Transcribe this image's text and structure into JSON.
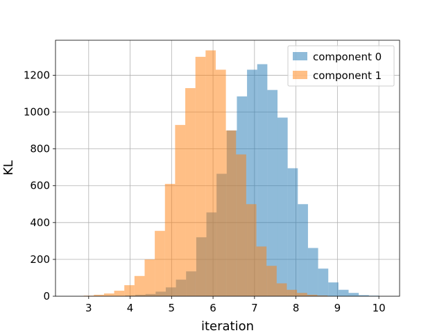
{
  "chart_data": {
    "type": "bar",
    "subtype": "histogram",
    "xlabel": "iteration",
    "ylabel": "KL",
    "xlim": [
      2.2,
      10.5
    ],
    "ylim": [
      0,
      1390
    ],
    "xticks": [
      3,
      4,
      5,
      6,
      7,
      8,
      9,
      10
    ],
    "yticks": [
      0,
      200,
      400,
      600,
      800,
      1000,
      1200
    ],
    "grid": true,
    "legend_position": "top-right",
    "bin_width": 0.245,
    "series": [
      {
        "name": "component 0",
        "color": "#1f77b4",
        "alpha": 0.5,
        "bins": [
          [
            3.88,
            4
          ],
          [
            4.125,
            8
          ],
          [
            4.37,
            12
          ],
          [
            4.615,
            25
          ],
          [
            4.86,
            48
          ],
          [
            5.105,
            90
          ],
          [
            5.35,
            135
          ],
          [
            5.595,
            320
          ],
          [
            5.84,
            455
          ],
          [
            6.085,
            665
          ],
          [
            6.33,
            900
          ],
          [
            6.575,
            1085
          ],
          [
            6.82,
            1230
          ],
          [
            7.065,
            1260
          ],
          [
            7.31,
            1120
          ],
          [
            7.555,
            970
          ],
          [
            7.8,
            695
          ],
          [
            8.045,
            500
          ],
          [
            8.29,
            262
          ],
          [
            8.535,
            150
          ],
          [
            8.78,
            75
          ],
          [
            9.025,
            35
          ],
          [
            9.27,
            18
          ],
          [
            9.515,
            6
          ],
          [
            9.76,
            3
          ]
        ]
      },
      {
        "name": "component 1",
        "color": "#ff7f0e",
        "alpha": 0.5,
        "bins": [
          [
            2.88,
            3
          ],
          [
            3.125,
            8
          ],
          [
            3.37,
            15
          ],
          [
            3.615,
            30
          ],
          [
            3.86,
            60
          ],
          [
            4.105,
            110
          ],
          [
            4.35,
            200
          ],
          [
            4.595,
            355
          ],
          [
            4.84,
            610
          ],
          [
            5.085,
            930
          ],
          [
            5.33,
            1130
          ],
          [
            5.575,
            1300
          ],
          [
            5.82,
            1335
          ],
          [
            6.065,
            1230
          ],
          [
            6.31,
            900
          ],
          [
            6.555,
            770
          ],
          [
            6.8,
            500
          ],
          [
            7.045,
            270
          ],
          [
            7.29,
            165
          ],
          [
            7.535,
            70
          ],
          [
            7.78,
            35
          ],
          [
            8.025,
            18
          ],
          [
            8.27,
            8
          ],
          [
            8.515,
            4
          ]
        ]
      }
    ]
  }
}
